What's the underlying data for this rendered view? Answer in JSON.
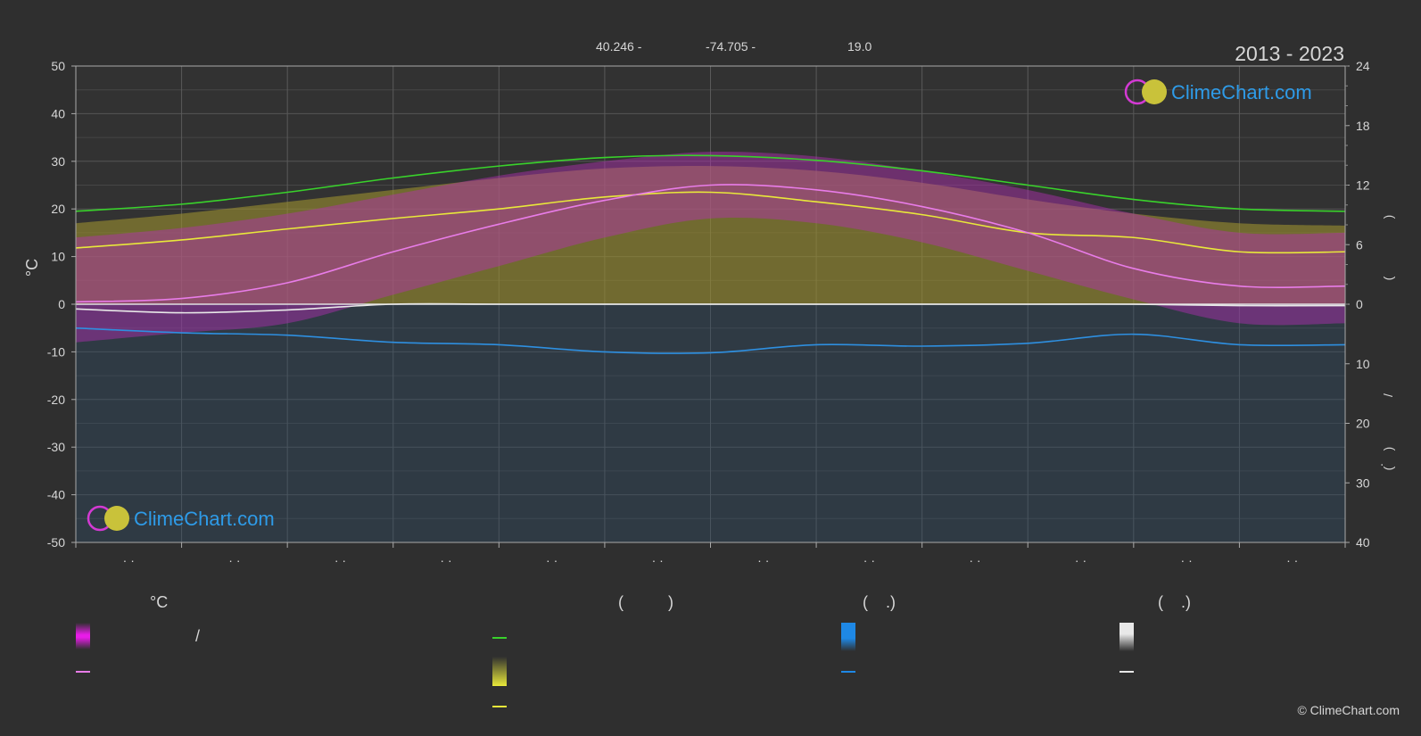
{
  "header": {
    "lat": "40.246 -",
    "lon": "-74.705 -",
    "elev": "19.0",
    "years": "2013 - 2023"
  },
  "brand": {
    "name": "ClimeChart.com",
    "copyright": "© ClimeChart.com"
  },
  "chart_data": {
    "type": "line",
    "y_left": {
      "label": "°C",
      "range": [
        -50,
        50
      ],
      "ticks": [
        50,
        40,
        30,
        20,
        10,
        0,
        -10,
        -20,
        -30,
        -40,
        -50
      ]
    },
    "y_right_top": {
      "range": [
        0,
        24
      ],
      "ticks": [
        "24",
        "18",
        "12",
        "6",
        "0"
      ]
    },
    "y_right_bottom": {
      "range": [
        0,
        40
      ],
      "ticks": [
        "10",
        "20",
        "30",
        "40"
      ]
    },
    "right_axis_marks": [
      ")",
      "(",
      "/",
      ")",
      "(",
      "·"
    ],
    "x_tick_labels": [
      "· ·",
      "· ·",
      "· ·",
      "· ·",
      "· ·",
      "· ·",
      "· ·",
      "· ·",
      "· ·",
      "· ·",
      "· ·",
      "· ·"
    ],
    "x": [
      0,
      1,
      2,
      3,
      4,
      5,
      6,
      7,
      8,
      9,
      10,
      11,
      12
    ],
    "series": [
      {
        "color": "#39d22b",
        "values": [
          19.5,
          21,
          23.5,
          26.5,
          29,
          30.8,
          31.2,
          30.2,
          28,
          25,
          22,
          20,
          19.5
        ]
      },
      {
        "color": "#e8e83a",
        "values": [
          11.8,
          13.5,
          15.8,
          18,
          20,
          22.5,
          23.5,
          21.5,
          18.8,
          15,
          14,
          11,
          11
        ]
      },
      {
        "color": "#e87ce8",
        "values": [
          0.5,
          1.2,
          4.5,
          11,
          16.8,
          21.8,
          25,
          24,
          20.5,
          15,
          7.5,
          3.8,
          3.8
        ]
      },
      {
        "color": "#e8e8e8",
        "values": [
          -1,
          -1.8,
          -1.2,
          0,
          0,
          0,
          0,
          0,
          0,
          0,
          0,
          -0.3,
          -0.3
        ]
      },
      {
        "color": "#2e8fe0",
        "values": [
          -5,
          -6,
          -6.5,
          -8,
          -8.5,
          -10,
          -10.2,
          -8.5,
          -8.8,
          -8.2,
          -6.3,
          -8.5,
          -8.5
        ]
      }
    ],
    "bands": [
      {
        "color": "#9b8f2e",
        "from": [
          0,
          0,
          0,
          0,
          0,
          0,
          0,
          0,
          0,
          0,
          0,
          0,
          0
        ],
        "to": [
          17,
          19,
          21.5,
          24,
          26.5,
          28.5,
          29,
          28,
          25.5,
          22,
          19,
          17,
          16.5
        ]
      },
      {
        "color": "#b52fb5",
        "from": [
          -8,
          -6,
          -4,
          2,
          8,
          14,
          18,
          17,
          13,
          7,
          1,
          -4,
          -4
        ],
        "to": [
          14,
          16,
          19,
          23,
          27,
          30,
          32,
          31,
          28,
          24,
          19,
          15,
          15
        ]
      }
    ]
  },
  "legend": {
    "col1_header": "°C",
    "col1_slash": "/",
    "col2_header": "(          )",
    "col3_header": "(    .)",
    "col4_header": "(    .)",
    "colors": {
      "magenta": "#e81ce8",
      "pink_line": "#e87ce8",
      "green_line": "#39d22b",
      "yellow": "#e8e83a",
      "blue": "#1e88e5",
      "white": "#e8e8e8"
    }
  }
}
